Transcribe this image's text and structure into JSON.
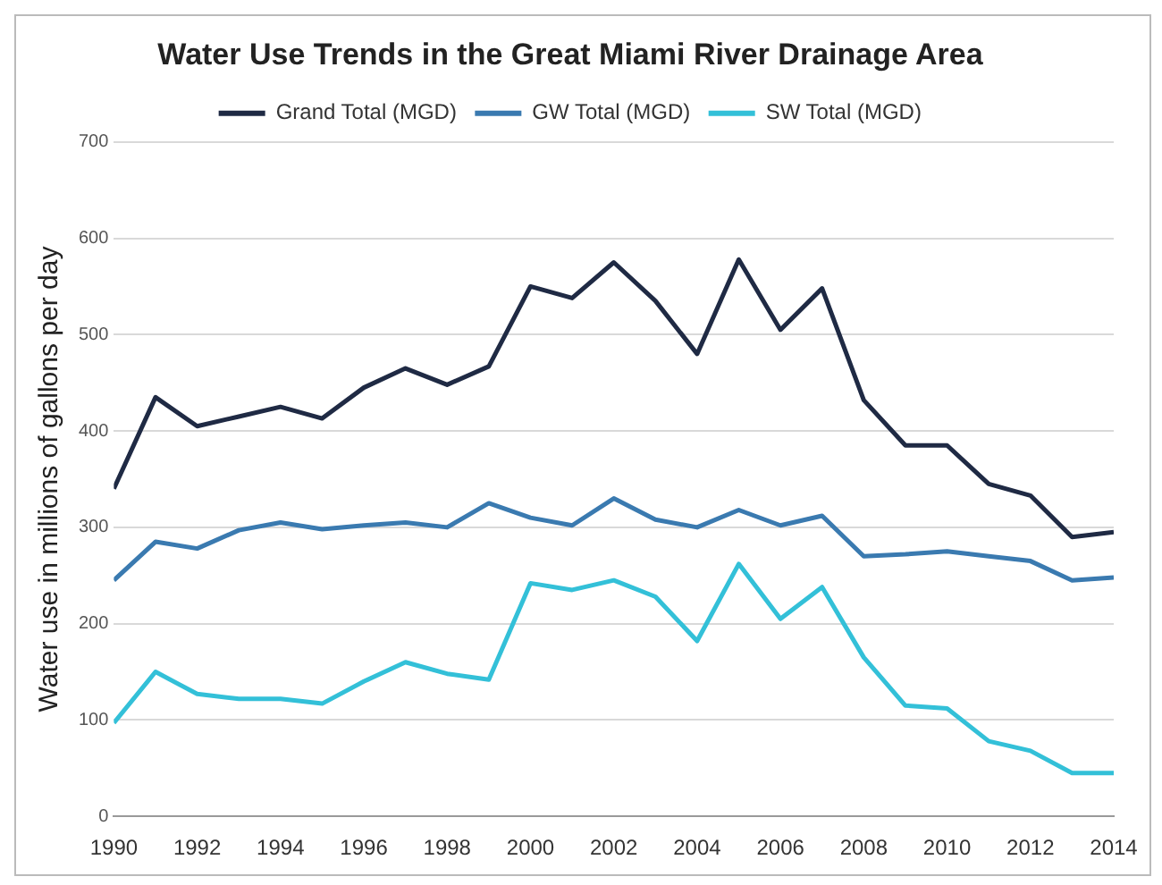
{
  "chart_data": {
    "type": "line",
    "title": "Water Use Trends in the Great Miami River Drainage Area",
    "ylabel": "Water use in millions of gallons per day",
    "x": [
      1990,
      1991,
      1992,
      1993,
      1994,
      1995,
      1996,
      1997,
      1998,
      1999,
      2000,
      2001,
      2002,
      2003,
      2004,
      2005,
      2006,
      2007,
      2008,
      2009,
      2010,
      2011,
      2012,
      2013,
      2014
    ],
    "series": [
      {
        "name": "Grand Total (MGD)",
        "color": "#1f2a44",
        "values": [
          340,
          435,
          405,
          415,
          425,
          413,
          445,
          465,
          448,
          467,
          550,
          538,
          575,
          535,
          480,
          578,
          505,
          548,
          432,
          385,
          385,
          345,
          333,
          290,
          295
        ]
      },
      {
        "name": "GW Total (MGD)",
        "color": "#3a7ab0",
        "values": [
          245,
          285,
          278,
          297,
          305,
          298,
          302,
          305,
          300,
          325,
          310,
          302,
          330,
          308,
          300,
          318,
          302,
          312,
          270,
          272,
          275,
          270,
          265,
          245,
          248
        ]
      },
      {
        "name": "SW Total (MGD)",
        "color": "#33c0d8",
        "values": [
          97,
          150,
          127,
          122,
          122,
          117,
          140,
          160,
          148,
          142,
          242,
          235,
          245,
          228,
          182,
          262,
          205,
          238,
          165,
          115,
          112,
          78,
          68,
          45,
          45
        ]
      }
    ],
    "xlim": [
      1990,
      2014
    ],
    "xticks": [
      1990,
      1992,
      1994,
      1996,
      1998,
      2000,
      2002,
      2004,
      2006,
      2008,
      2010,
      2012,
      2014
    ],
    "ylim": [
      0,
      700
    ],
    "yticks": [
      0,
      100,
      200,
      300,
      400,
      500,
      600,
      700
    ],
    "grid": "y",
    "legend": "top",
    "marker": "none",
    "line_style": "solid"
  }
}
